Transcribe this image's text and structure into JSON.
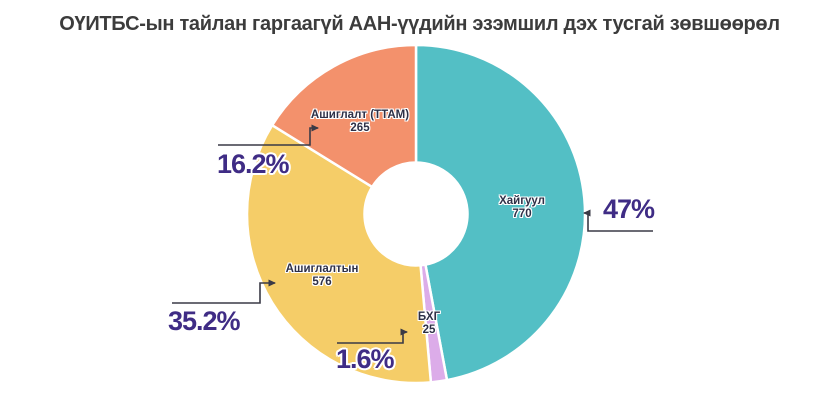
{
  "title": "ОҮИТБС-ын тайлан гаргаагүй ААН-үүдийн эзэмшил дэх тусгай зөвшөөрөл",
  "chart_data": {
    "type": "pie",
    "subtype": "donut",
    "hole_ratio": 0.3,
    "start_angle_deg": 0,
    "direction": "clockwise",
    "legend": "none",
    "total": 1636,
    "segments": [
      {
        "id": "khaiguul",
        "label": "Хайгуул",
        "value": 770,
        "pct_label": "47%",
        "color": "#53bfc5"
      },
      {
        "id": "bkhg",
        "label": "БХГ",
        "value": 25,
        "pct_label": "1.6%",
        "color": "#dcace9"
      },
      {
        "id": "ashiglaltyn",
        "label": "Ашиглалтын",
        "value": 576,
        "pct_label": "35.2%",
        "color": "#f5cd68"
      },
      {
        "id": "ashiglalt-ttam",
        "label": "Ашиглалт (ТТАМ)",
        "value": 265,
        "pct_label": "16.2%",
        "color": "#f3916c"
      }
    ],
    "annotation_colors": {
      "percent_text": "#3f2c85",
      "slice_label_text": "#2e3047",
      "callout_line": "#3a3a46",
      "title_text": "#3c3c3c"
    }
  }
}
